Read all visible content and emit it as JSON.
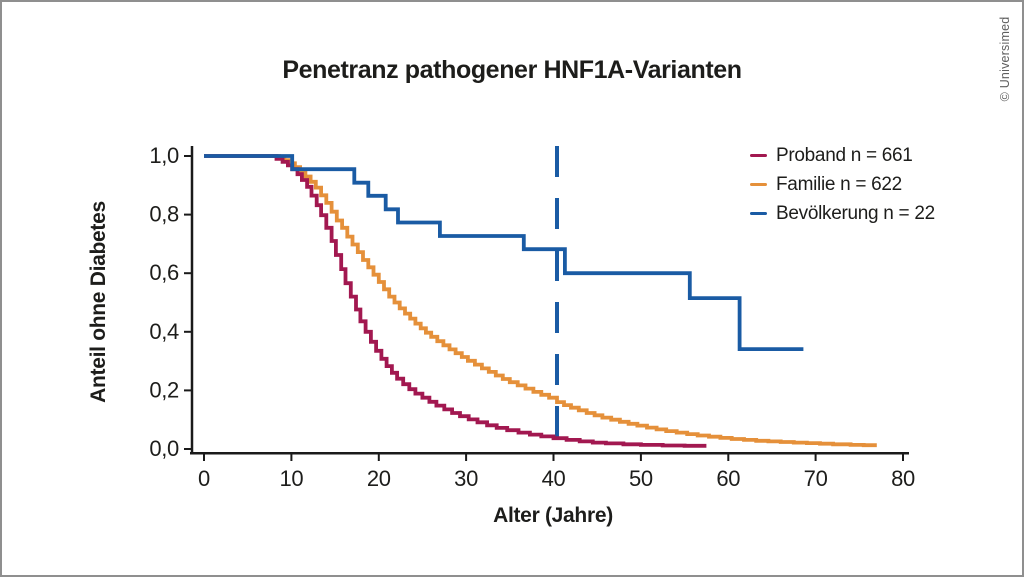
{
  "page": {
    "copyright": "© Universimed"
  },
  "chart_data": {
    "type": "line",
    "subtype": "kaplan-meier-step",
    "title": "Penetranz pathogener HNF1A-Varianten",
    "xlabel": "Alter (Jahre)",
    "ylabel": "Anteil ohne Diabetes",
    "xlim": [
      0,
      80
    ],
    "ylim": [
      0.0,
      1.0
    ],
    "grid": false,
    "legend_position": "top-right",
    "axis_color": "#1a1a1a",
    "x_ticks": [
      {
        "v": 0,
        "label": "0"
      },
      {
        "v": 10,
        "label": "10"
      },
      {
        "v": 20,
        "label": "20"
      },
      {
        "v": 30,
        "label": "30"
      },
      {
        "v": 40,
        "label": "40"
      },
      {
        "v": 50,
        "label": "50"
      },
      {
        "v": 60,
        "label": "60"
      },
      {
        "v": 70,
        "label": "70"
      },
      {
        "v": 80,
        "label": "80"
      }
    ],
    "y_ticks": [
      {
        "v": 0.0,
        "label": "0,0"
      },
      {
        "v": 0.2,
        "label": "0,2"
      },
      {
        "v": 0.4,
        "label": "0,4"
      },
      {
        "v": 0.6,
        "label": "0,6"
      },
      {
        "v": 0.8,
        "label": "0,8"
      },
      {
        "v": 1.0,
        "label": "1,0"
      }
    ],
    "reference_line": {
      "orientation": "vertical",
      "x": 40.4,
      "style": "dashed",
      "color": "#1a5ba4"
    },
    "series": [
      {
        "id": "proband",
        "name": "Proband",
        "n": 661,
        "label": "Proband n = 661",
        "color": "#a21850",
        "x_end": 57.5,
        "steps": [
          [
            0,
            1.0
          ],
          [
            8.3,
            0.99
          ],
          [
            9.0,
            0.98
          ],
          [
            9.6,
            0.968
          ],
          [
            10.1,
            0.955
          ],
          [
            10.7,
            0.938
          ],
          [
            11.2,
            0.918
          ],
          [
            11.8,
            0.895
          ],
          [
            12.3,
            0.865
          ],
          [
            12.9,
            0.832
          ],
          [
            13.4,
            0.798
          ],
          [
            14.0,
            0.755
          ],
          [
            14.6,
            0.71
          ],
          [
            15.1,
            0.662
          ],
          [
            15.7,
            0.614
          ],
          [
            16.2,
            0.566
          ],
          [
            16.8,
            0.52
          ],
          [
            17.4,
            0.476
          ],
          [
            17.9,
            0.436
          ],
          [
            18.5,
            0.4
          ],
          [
            19.1,
            0.366
          ],
          [
            19.7,
            0.335
          ],
          [
            20.3,
            0.308
          ],
          [
            20.9,
            0.283
          ],
          [
            21.5,
            0.26
          ],
          [
            22.1,
            0.24
          ],
          [
            22.8,
            0.221
          ],
          [
            23.5,
            0.204
          ],
          [
            24.2,
            0.189
          ],
          [
            25.0,
            0.175
          ],
          [
            25.8,
            0.161
          ],
          [
            26.6,
            0.148
          ],
          [
            27.5,
            0.135
          ],
          [
            28.4,
            0.123
          ],
          [
            29.3,
            0.112
          ],
          [
            30.3,
            0.101
          ],
          [
            31.3,
            0.091
          ],
          [
            32.4,
            0.081
          ],
          [
            33.5,
            0.072
          ],
          [
            34.7,
            0.064
          ],
          [
            36.0,
            0.056
          ],
          [
            37.3,
            0.049
          ],
          [
            38.6,
            0.043
          ],
          [
            40.0,
            0.037
          ],
          [
            41.5,
            0.031
          ],
          [
            43.0,
            0.026
          ],
          [
            44.5,
            0.022
          ],
          [
            46.0,
            0.019
          ],
          [
            48.0,
            0.016
          ],
          [
            50.0,
            0.014
          ],
          [
            52.5,
            0.012
          ],
          [
            55.0,
            0.011
          ]
        ]
      },
      {
        "id": "familie",
        "name": "Familie",
        "n": 622,
        "label": "Familie n = 622",
        "color": "#e5903a",
        "x_end": 77.0,
        "steps": [
          [
            0,
            1.0
          ],
          [
            8.6,
            0.995
          ],
          [
            9.2,
            0.986
          ],
          [
            9.8,
            0.975
          ],
          [
            10.4,
            0.962
          ],
          [
            11.0,
            0.947
          ],
          [
            11.6,
            0.93
          ],
          [
            12.2,
            0.912
          ],
          [
            12.8,
            0.892
          ],
          [
            13.4,
            0.866
          ],
          [
            14.0,
            0.84
          ],
          [
            14.6,
            0.81
          ],
          [
            15.2,
            0.78
          ],
          [
            15.8,
            0.755
          ],
          [
            16.4,
            0.725
          ],
          [
            17.0,
            0.698
          ],
          [
            17.6,
            0.672
          ],
          [
            18.2,
            0.645
          ],
          [
            18.8,
            0.62
          ],
          [
            19.4,
            0.595
          ],
          [
            20.0,
            0.57
          ],
          [
            20.6,
            0.545
          ],
          [
            21.2,
            0.52
          ],
          [
            21.8,
            0.5
          ],
          [
            22.4,
            0.48
          ],
          [
            23.0,
            0.462
          ],
          [
            23.6,
            0.445
          ],
          [
            24.2,
            0.428
          ],
          [
            24.8,
            0.412
          ],
          [
            25.4,
            0.397
          ],
          [
            26.0,
            0.383
          ],
          [
            26.7,
            0.368
          ],
          [
            27.4,
            0.354
          ],
          [
            28.1,
            0.34
          ],
          [
            28.8,
            0.327
          ],
          [
            29.5,
            0.314
          ],
          [
            30.2,
            0.301
          ],
          [
            31.0,
            0.288
          ],
          [
            31.8,
            0.275
          ],
          [
            32.6,
            0.263
          ],
          [
            33.4,
            0.251
          ],
          [
            34.2,
            0.239
          ],
          [
            35.0,
            0.228
          ],
          [
            35.9,
            0.217
          ],
          [
            36.8,
            0.206
          ],
          [
            37.7,
            0.195
          ],
          [
            38.6,
            0.185
          ],
          [
            39.5,
            0.175
          ],
          [
            40.4,
            0.16
          ],
          [
            41.2,
            0.15
          ],
          [
            42.0,
            0.141
          ],
          [
            42.9,
            0.132
          ],
          [
            43.8,
            0.123
          ],
          [
            44.7,
            0.115
          ],
          [
            45.6,
            0.107
          ],
          [
            46.6,
            0.1
          ],
          [
            47.6,
            0.093
          ],
          [
            48.6,
            0.086
          ],
          [
            49.6,
            0.08
          ],
          [
            50.7,
            0.073
          ],
          [
            51.8,
            0.067
          ],
          [
            52.9,
            0.061
          ],
          [
            54.1,
            0.056
          ],
          [
            55.3,
            0.051
          ],
          [
            56.5,
            0.046
          ],
          [
            57.8,
            0.042
          ],
          [
            59.1,
            0.038
          ],
          [
            60.4,
            0.034
          ],
          [
            61.8,
            0.031
          ],
          [
            63.2,
            0.028
          ],
          [
            64.6,
            0.026
          ],
          [
            66.0,
            0.024
          ],
          [
            67.5,
            0.022
          ],
          [
            69.0,
            0.02
          ],
          [
            70.5,
            0.018
          ],
          [
            72.0,
            0.016
          ],
          [
            74.0,
            0.014
          ],
          [
            75.5,
            0.013
          ]
        ]
      },
      {
        "id": "bevoelkerung",
        "name": "Bevölkerung",
        "n": 22,
        "label": "Bevölkerung n = 22",
        "color": "#1a5ba4",
        "x_end": 68.6,
        "steps": [
          [
            0,
            1.0
          ],
          [
            10.1,
            0.955
          ],
          [
            17.2,
            0.909
          ],
          [
            18.8,
            0.864
          ],
          [
            20.8,
            0.818
          ],
          [
            22.2,
            0.773
          ],
          [
            27.0,
            0.727
          ],
          [
            36.6,
            0.682
          ],
          [
            41.3,
            0.6
          ],
          [
            55.6,
            0.515
          ],
          [
            61.3,
            0.341
          ]
        ]
      }
    ]
  }
}
